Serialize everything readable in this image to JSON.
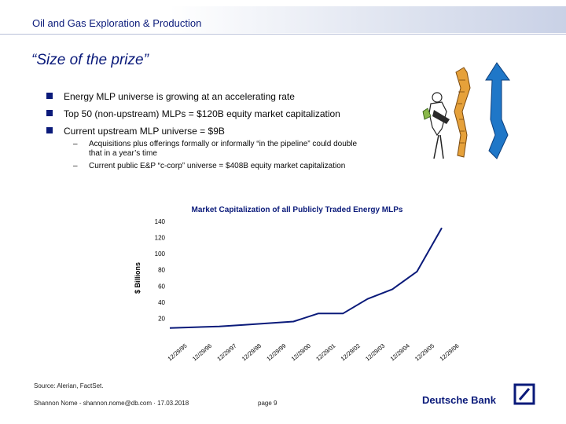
{
  "header": {
    "title": "Oil and Gas Exploration & Production"
  },
  "slide": {
    "title": "“Size of the prize”",
    "bullets": [
      "Energy MLP universe is growing at an accelerating rate",
      "Top 50 (non-upstream) MLPs = $120B equity market capitalization",
      "Current upstream MLP universe = $9B"
    ],
    "sub_bullets": [
      "Acquisitions plus offerings formally or informally “in the pipeline” could double that in a year’s time",
      "Current public E&P “c-corp” universe = $408B equity market capitalization"
    ]
  },
  "chart_data": {
    "type": "line",
    "title": "Market Capitalization of all Publicly Traded Energy MLPs",
    "xlabel": "",
    "ylabel": "$ Billions",
    "ylim": [
      0,
      140
    ],
    "yticks": [
      20,
      40,
      60,
      80,
      100,
      120,
      140
    ],
    "x": [
      "12/29/95",
      "12/29/96",
      "12/29/97",
      "12/29/98",
      "12/29/99",
      "12/29/00",
      "12/29/01",
      "12/29/02",
      "12/29/03",
      "12/29/04",
      "12/29/05",
      "12/29/06"
    ],
    "series": [
      {
        "values": [
          8,
          9,
          10,
          12,
          14,
          16,
          26,
          26,
          44,
          56,
          78,
          132
        ]
      }
    ],
    "grid": false,
    "color": "#0a1a7a"
  },
  "footer": {
    "source": "Source: Alerian, FactSet.",
    "author": "Shannon Nome - shannon.nome@db.com · 17.03.2018",
    "page": "page 9",
    "brand": "Deutsche Bank"
  },
  "colors": {
    "brand_blue": "#0a1a7a"
  }
}
